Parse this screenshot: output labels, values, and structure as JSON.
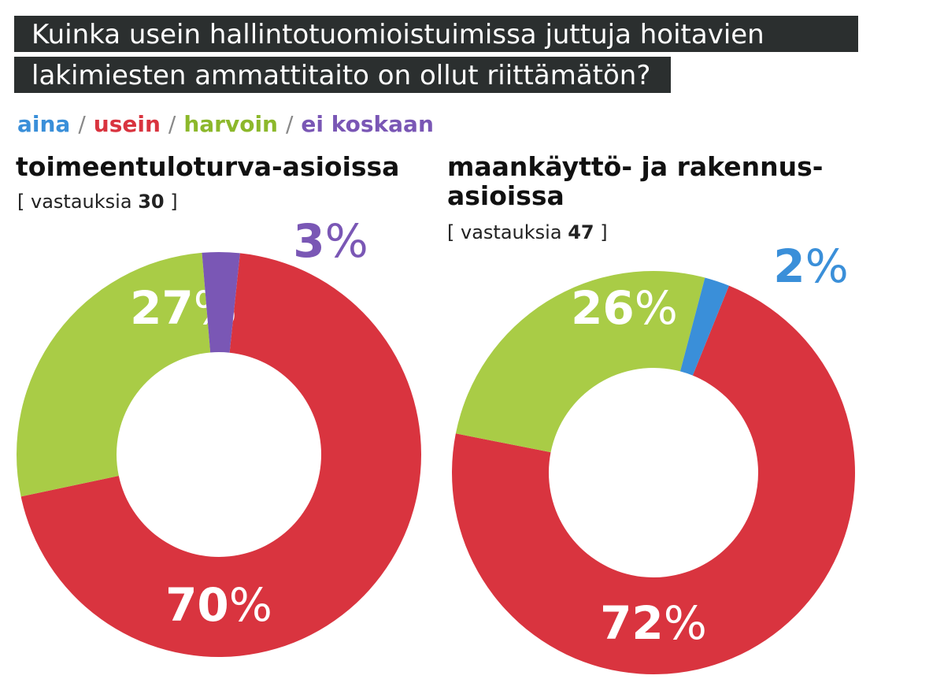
{
  "title": {
    "line1": "Kuinka usein hallintotuomioistuimissa juttuja hoitavien",
    "line2": "lakimiesten ammattitaito on ollut riittämätön?"
  },
  "legend": {
    "items": [
      {
        "label": "aina",
        "color": "#3a8fd9"
      },
      {
        "label": "usein",
        "color": "#d9343f"
      },
      {
        "label": "harvoin",
        "color": "#8cb82b"
      },
      {
        "label": "ei koskaan",
        "color": "#7a57b5"
      }
    ],
    "separator": "/"
  },
  "chart_data": [
    {
      "type": "pie",
      "title": "toimeentuloturva-asioissa",
      "responses_label": "vastauksia",
      "responses": "30",
      "slices": [
        {
          "name": "usein",
          "value": 70,
          "label": "70",
          "color": "#d9343f",
          "label_color": "#ffffff"
        },
        {
          "name": "harvoin",
          "value": 27,
          "label": "27",
          "color": "#a9cc46",
          "label_color": "#ffffff"
        },
        {
          "name": "ei koskaan",
          "value": 3,
          "label": "3",
          "color": "#7a57b5",
          "label_color": "#7a57b5"
        }
      ]
    },
    {
      "type": "pie",
      "title_line1": "maankäyttö- ja rakennus-",
      "title_line2": "asioissa",
      "responses_label": "vastauksia",
      "responses": "47",
      "slices": [
        {
          "name": "usein",
          "value": 72,
          "label": "72",
          "color": "#d9343f",
          "label_color": "#ffffff"
        },
        {
          "name": "harvoin",
          "value": 26,
          "label": "26",
          "color": "#a9cc46",
          "label_color": "#ffffff"
        },
        {
          "name": "aina",
          "value": 2,
          "label": "2",
          "color": "#3a8fd9",
          "label_color": "#3a8fd9"
        }
      ]
    }
  ],
  "percent_sign": "%",
  "bracket_open": "[",
  "bracket_close": "]"
}
